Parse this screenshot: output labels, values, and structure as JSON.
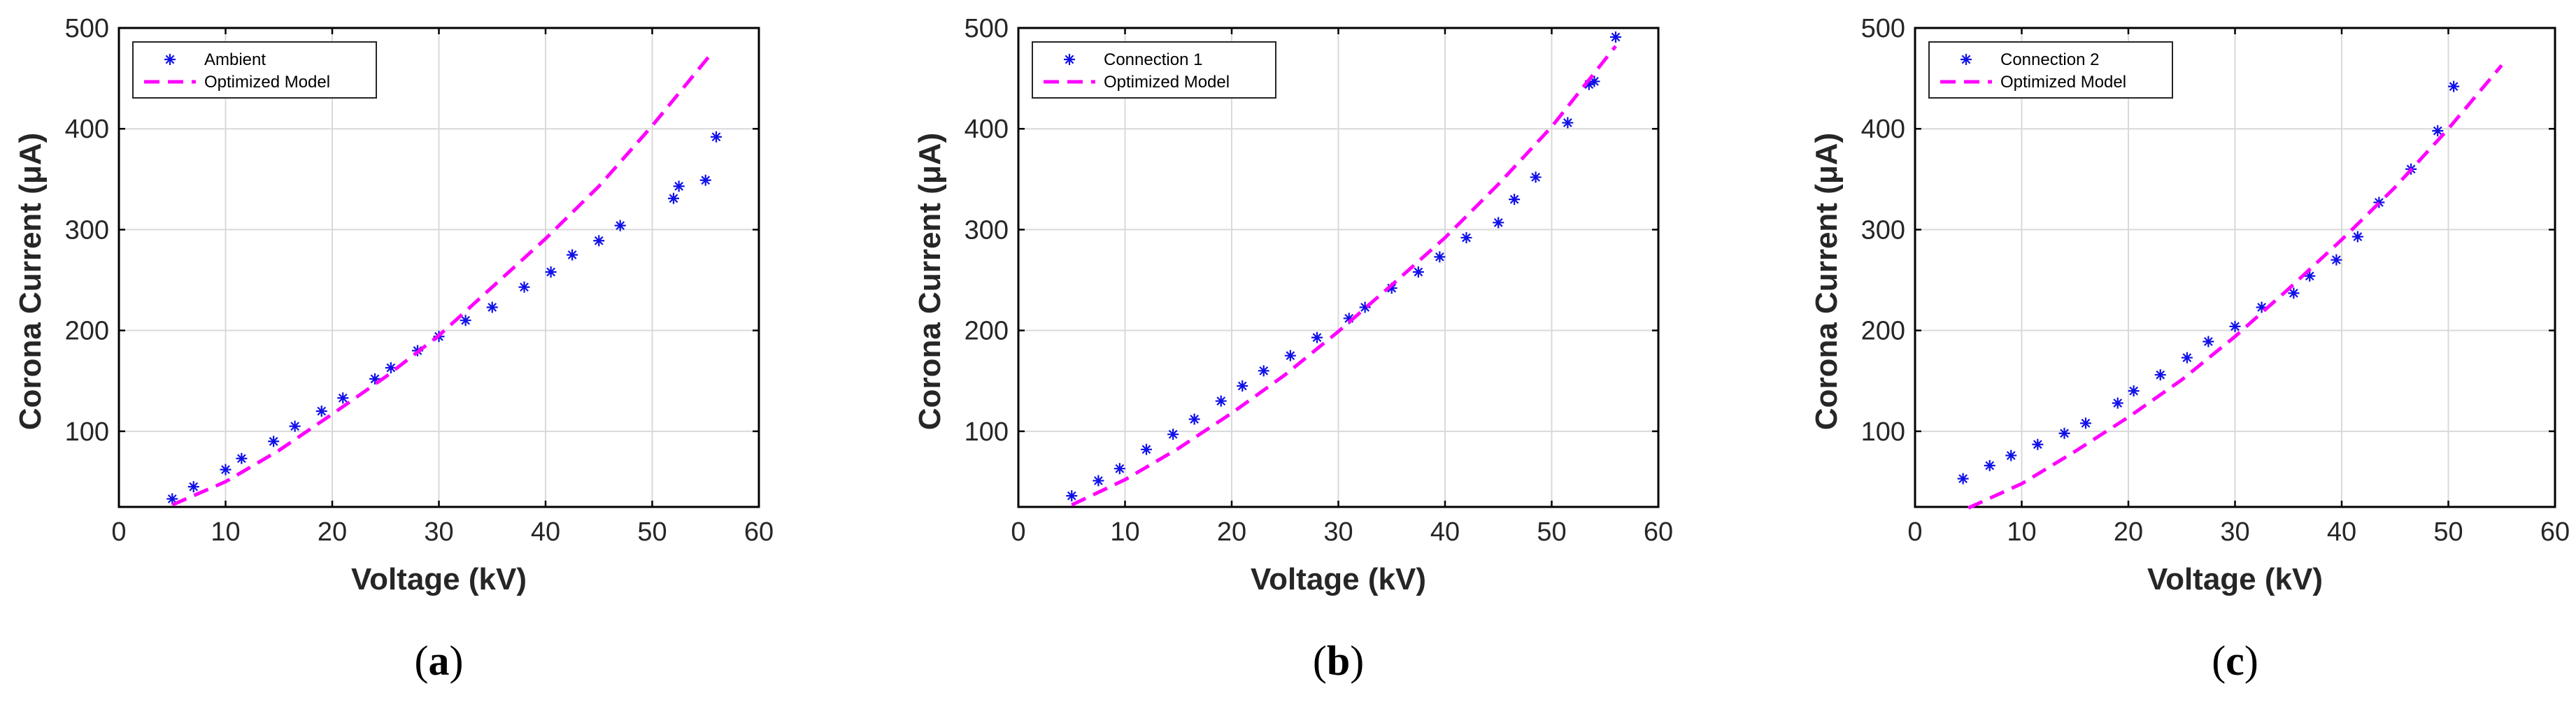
{
  "figure": {
    "panels": [
      "a",
      "b",
      "c"
    ]
  },
  "colors": {
    "data_marker": "#1010e8",
    "model_line": "#ff00ff",
    "grid": "#d9d9d9",
    "axis": "#000000"
  },
  "chart_data": [
    {
      "type": "scatter",
      "caption": "(a)",
      "caption_open": "(",
      "caption_letter": "a",
      "caption_close": ")",
      "xlabel": "Voltage (kV)",
      "ylabel": "Corona Current (μA)",
      "xlim": [
        0,
        60
      ],
      "ylim": [
        25,
        500
      ],
      "xticks": [
        0,
        10,
        20,
        30,
        40,
        50,
        60
      ],
      "yticks": [
        100,
        200,
        300,
        400,
        500
      ],
      "xtick_labels": [
        "0",
        "10",
        "20",
        "30",
        "40",
        "50",
        "60"
      ],
      "ytick_labels": [
        "100",
        "200",
        "300",
        "400",
        "500"
      ],
      "grid": true,
      "legend_position": "top-left",
      "series": [
        {
          "name": "Ambient",
          "style": "marker-asterisk",
          "x": [
            5,
            7,
            10,
            11.5,
            14.5,
            16.5,
            19,
            21,
            24,
            25.5,
            28,
            30,
            32.5,
            35,
            38,
            40.5,
            42.5,
            45,
            47,
            52,
            52.5,
            55,
            56
          ],
          "y": [
            33,
            45,
            62,
            73,
            90,
            105,
            120,
            133,
            152,
            163,
            180,
            194,
            210,
            223,
            243,
            258,
            275,
            289,
            304,
            331,
            343,
            349,
            392
          ]
        },
        {
          "name": "Optimized Model",
          "style": "dashed-line",
          "x": [
            5,
            10,
            15,
            20,
            25,
            30,
            35,
            40,
            45,
            50,
            55.5
          ],
          "y": [
            27,
            50,
            81,
            117,
            154,
            195,
            243,
            291,
            343,
            403,
            474
          ]
        }
      ]
    },
    {
      "type": "scatter",
      "caption": "(b)",
      "caption_open": "(",
      "caption_letter": "b",
      "caption_close": ")",
      "xlabel": "Voltage (kV)",
      "ylabel": "Corona Current (μA)",
      "xlim": [
        0,
        60
      ],
      "ylim": [
        25,
        500
      ],
      "xticks": [
        0,
        10,
        20,
        30,
        40,
        50,
        60
      ],
      "yticks": [
        100,
        200,
        300,
        400,
        500
      ],
      "xtick_labels": [
        "0",
        "10",
        "20",
        "30",
        "40",
        "50",
        "60"
      ],
      "ytick_labels": [
        "100",
        "200",
        "300",
        "400",
        "500"
      ],
      "grid": true,
      "legend_position": "top-left",
      "series": [
        {
          "name": "Connection 1",
          "style": "marker-asterisk",
          "x": [
            5,
            7.5,
            9.5,
            12,
            14.5,
            16.5,
            19,
            21,
            23,
            25.5,
            28,
            31,
            32.5,
            35,
            37.5,
            39.5,
            42,
            45,
            46.5,
            48.5,
            51.5,
            53.5,
            54,
            56
          ],
          "y": [
            36,
            51,
            63,
            82,
            97,
            112,
            130,
            145,
            160,
            175,
            193,
            212,
            223,
            242,
            258,
            273,
            292,
            307,
            330,
            352,
            406,
            444,
            447,
            491
          ]
        },
        {
          "name": "Optimized Model",
          "style": "dashed-line",
          "x": [
            5,
            10,
            15,
            20,
            25,
            30,
            35,
            40,
            45,
            50,
            56
          ],
          "y": [
            27,
            52,
            83,
            118,
            156,
            199,
            245,
            292,
            345,
            402,
            482
          ]
        }
      ]
    },
    {
      "type": "scatter",
      "caption": "(c)",
      "caption_open": "(",
      "caption_letter": "c",
      "caption_close": ")",
      "xlabel": "Voltage (kV)",
      "ylabel": "Corona Current (μA)",
      "xlim": [
        0,
        60
      ],
      "ylim": [
        25,
        500
      ],
      "xticks": [
        0,
        10,
        20,
        30,
        40,
        50,
        60
      ],
      "yticks": [
        100,
        200,
        300,
        400,
        500
      ],
      "xtick_labels": [
        "0",
        "10",
        "20",
        "30",
        "40",
        "50",
        "60"
      ],
      "ytick_labels": [
        "100",
        "200",
        "300",
        "400",
        "500"
      ],
      "grid": true,
      "legend_position": "top-left",
      "series": [
        {
          "name": "Connection 2",
          "style": "marker-asterisk",
          "x": [
            4.5,
            7,
            9,
            11.5,
            14,
            16,
            19,
            20.5,
            23,
            25.5,
            27.5,
            30,
            32.5,
            35.5,
            37,
            39.5,
            41.5,
            43.5,
            46.5,
            49,
            50.5
          ],
          "y": [
            53,
            66,
            76,
            87,
            98,
            108,
            128,
            140,
            156,
            173,
            189,
            204,
            223,
            237,
            254,
            270,
            293,
            327,
            360,
            398,
            442
          ]
        },
        {
          "name": "Optimized Model",
          "style": "dashed-line",
          "x": [
            5,
            10,
            15,
            20,
            25,
            30,
            35,
            40,
            45,
            50,
            55
          ],
          "y": [
            24,
            48,
            80,
            114,
            151,
            194,
            241,
            290,
            342,
            400,
            463
          ]
        }
      ]
    }
  ]
}
